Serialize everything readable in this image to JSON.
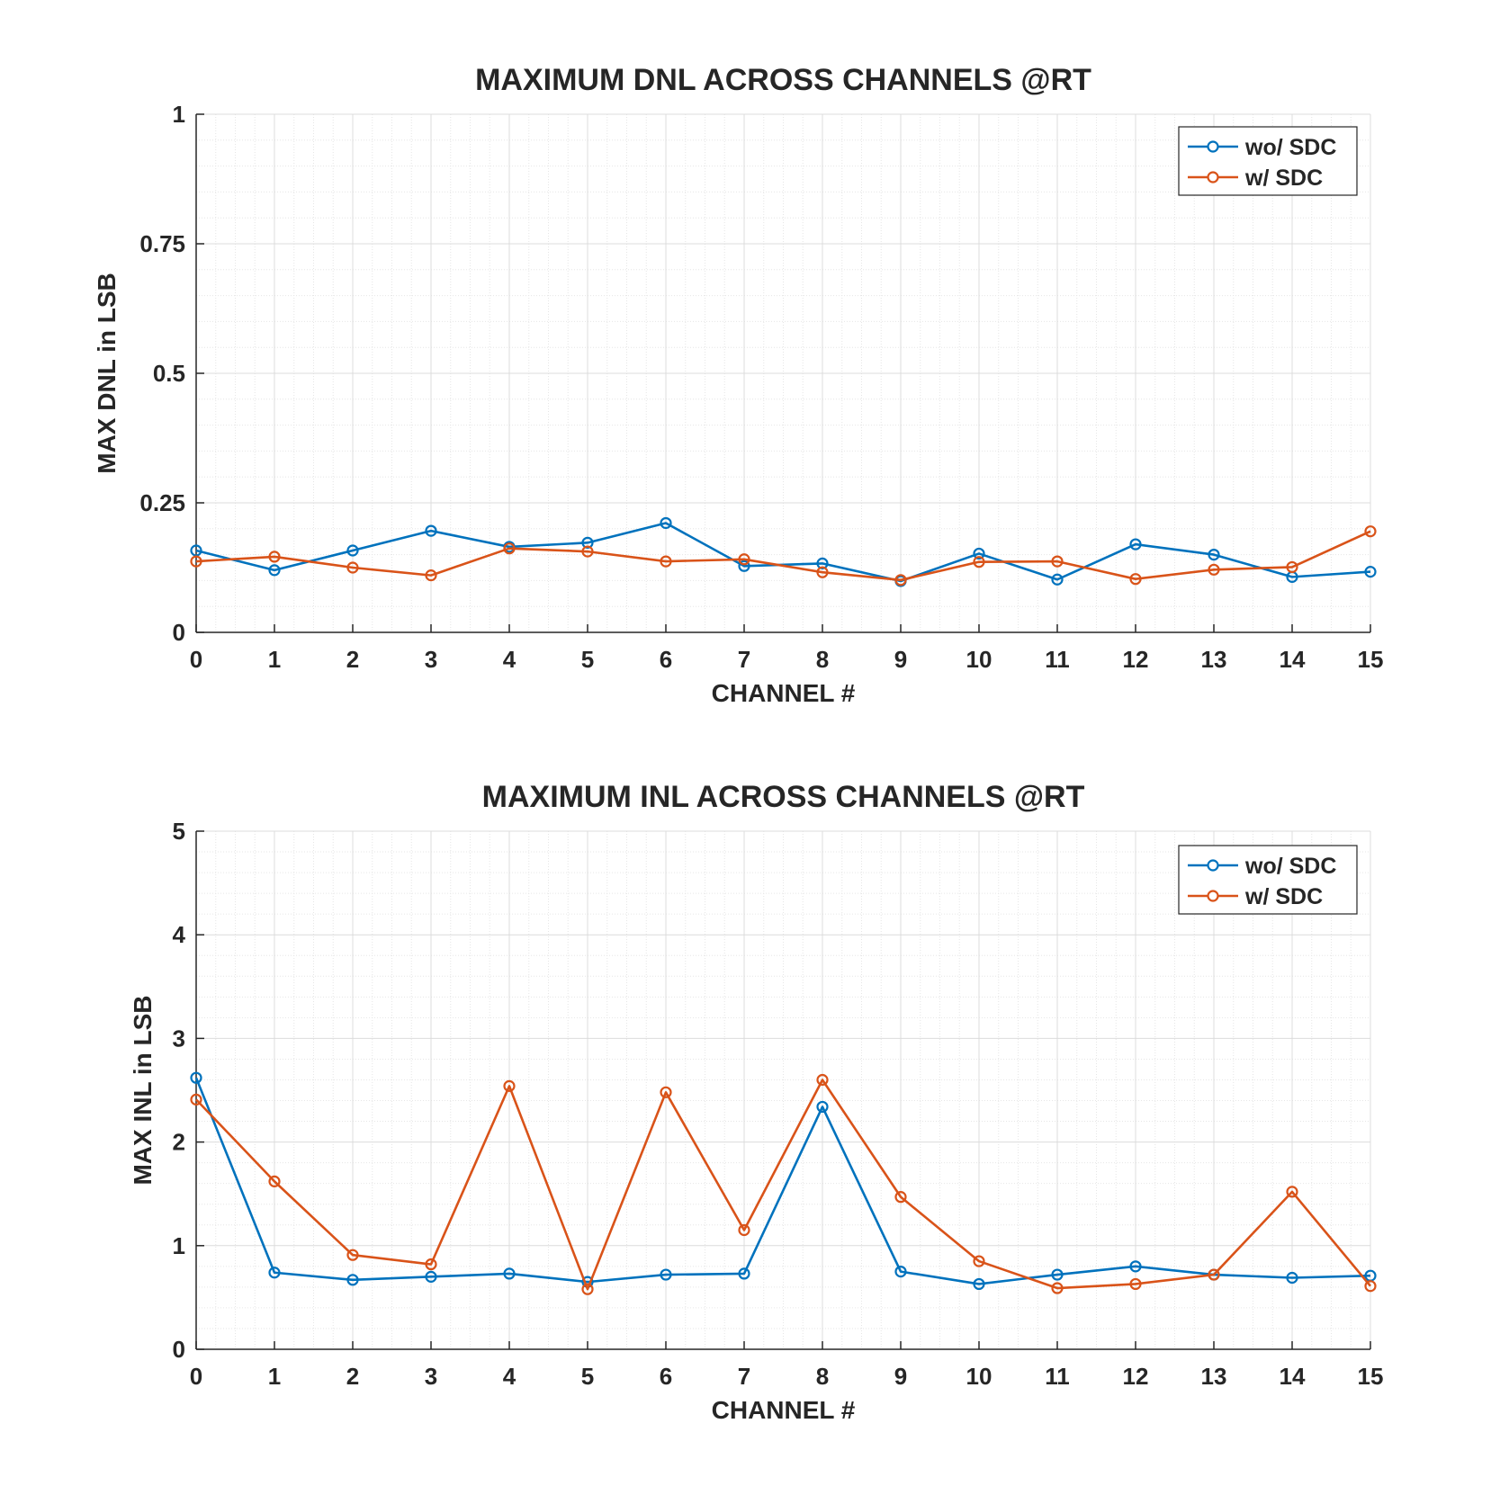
{
  "chart_data": [
    {
      "type": "line",
      "title": "MAXIMUM DNL ACROSS CHANNELS @RT",
      "xlabel": "CHANNEL #",
      "ylabel": "MAX DNL in LSB",
      "xlim": [
        0,
        15
      ],
      "ylim": [
        0,
        1
      ],
      "xticks": [
        0,
        1,
        2,
        3,
        4,
        5,
        6,
        7,
        8,
        9,
        10,
        11,
        12,
        13,
        14,
        15
      ],
      "xtick_labels": [
        "0",
        "1",
        "2",
        "3",
        "4",
        "5",
        "6",
        "7",
        "8",
        "9",
        "10",
        "11",
        "12",
        "13",
        "14",
        "15"
      ],
      "yticks": [
        0,
        0.25,
        0.5,
        0.75,
        1
      ],
      "ytick_labels": [
        "0",
        "0.25",
        "0.5",
        "0.75",
        "1"
      ],
      "grid": true,
      "minor_grid": true,
      "legend_position": "top-right",
      "x": [
        0,
        1,
        2,
        3,
        4,
        5,
        6,
        7,
        8,
        9,
        10,
        11,
        12,
        13,
        14,
        15
      ],
      "series": [
        {
          "name": "wo/ SDC",
          "color": "#0072BD",
          "values": [
            0.158,
            0.12,
            0.158,
            0.196,
            0.165,
            0.173,
            0.211,
            0.128,
            0.133,
            0.099,
            0.152,
            0.102,
            0.17,
            0.15,
            0.107,
            0.117
          ]
        },
        {
          "name": "w/ SDC",
          "color": "#D95319",
          "values": [
            0.137,
            0.146,
            0.125,
            0.11,
            0.162,
            0.156,
            0.137,
            0.141,
            0.116,
            0.101,
            0.136,
            0.137,
            0.103,
            0.121,
            0.126,
            0.195
          ]
        }
      ]
    },
    {
      "type": "line",
      "title": "MAXIMUM INL ACROSS CHANNELS @RT",
      "xlabel": "CHANNEL #",
      "ylabel": "MAX INL in LSB",
      "xlim": [
        0,
        15
      ],
      "ylim": [
        0,
        5
      ],
      "xticks": [
        0,
        1,
        2,
        3,
        4,
        5,
        6,
        7,
        8,
        9,
        10,
        11,
        12,
        13,
        14,
        15
      ],
      "xtick_labels": [
        "0",
        "1",
        "2",
        "3",
        "4",
        "5",
        "6",
        "7",
        "8",
        "9",
        "10",
        "11",
        "12",
        "13",
        "14",
        "15"
      ],
      "yticks": [
        0,
        1,
        2,
        3,
        4,
        5
      ],
      "ytick_labels": [
        "0",
        "1",
        "2",
        "3",
        "4",
        "5"
      ],
      "grid": true,
      "minor_grid": true,
      "legend_position": "top-right",
      "x": [
        0,
        1,
        2,
        3,
        4,
        5,
        6,
        7,
        8,
        9,
        10,
        11,
        12,
        13,
        14,
        15
      ],
      "series": [
        {
          "name": "wo/ SDC",
          "color": "#0072BD",
          "values": [
            2.62,
            0.74,
            0.67,
            0.7,
            0.73,
            0.65,
            0.72,
            0.73,
            2.34,
            0.75,
            0.63,
            0.72,
            0.8,
            0.72,
            0.69,
            0.71
          ]
        },
        {
          "name": "w/ SDC",
          "color": "#D95319",
          "values": [
            2.41,
            1.62,
            0.91,
            0.82,
            2.54,
            0.58,
            2.48,
            1.15,
            2.6,
            1.47,
            0.85,
            0.59,
            0.63,
            0.72,
            1.52,
            0.61
          ]
        }
      ]
    }
  ]
}
